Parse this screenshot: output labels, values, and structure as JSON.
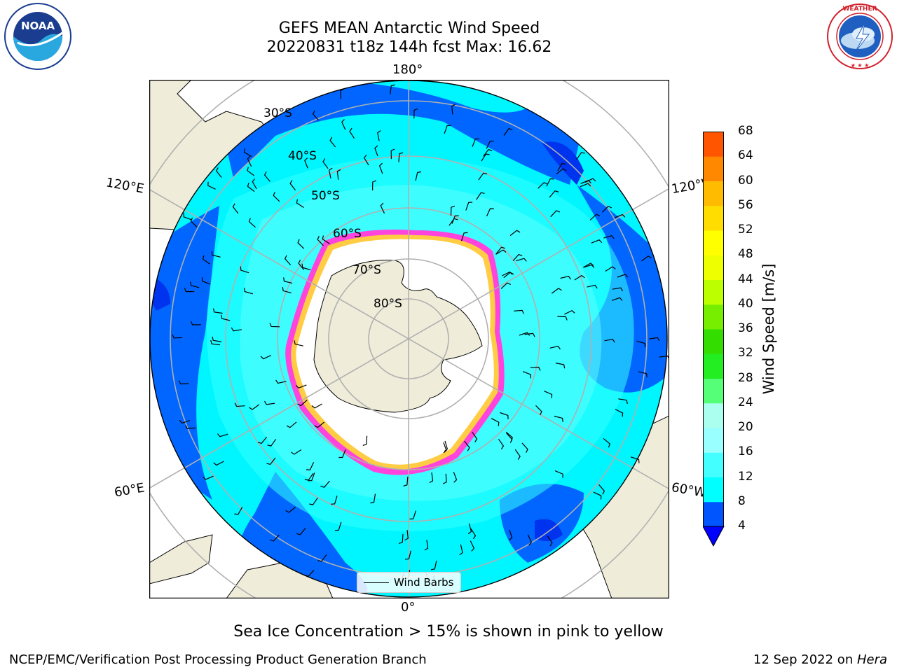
{
  "header": {
    "title_line1": "GEFS MEAN Antarctic Wind Speed",
    "title_line2": "20220831 t18z 144h fcst   Max: 16.62"
  },
  "logos": {
    "noaa_text": "NOAA",
    "noaa_ring_text": "NATIONAL OCEANIC AND ATMOSPHERIC ADMINISTRATION · U.S. DEPARTMENT OF COMMERCE",
    "nws_ring_text": "NATIONAL WEATHER SERVICE"
  },
  "map": {
    "longitude_labels": {
      "top": "180°",
      "left_upper": "120°E",
      "right_upper": "120°W",
      "left_lower": "60°E",
      "right_lower": "60°W",
      "bottom": "0°"
    },
    "latitude_labels": [
      "30°S",
      "40°S",
      "50°S",
      "60°S",
      "70°S",
      "80°S"
    ],
    "legend_label": "Wind Barbs"
  },
  "colorbar": {
    "label": "Wind Speed [m/s]",
    "ticks": [
      "4",
      "8",
      "12",
      "16",
      "20",
      "24",
      "28",
      "32",
      "36",
      "40",
      "44",
      "48",
      "52",
      "56",
      "60",
      "64",
      "68"
    ],
    "colors": [
      "#0055ff",
      "#00ffff",
      "#44ffff",
      "#99ffff",
      "#aaffee",
      "#55ff77",
      "#22ee22",
      "#33dd00",
      "#77ee00",
      "#bbff00",
      "#eeff00",
      "#ffff00",
      "#ffdd00",
      "#ffbb00",
      "#ff8800",
      "#ff5500",
      "#ff2200",
      "#ff0000"
    ],
    "under_color": "#0000ff"
  },
  "note": "Sea Ice Concentration > 15% is shown in pink to yellow",
  "footer": {
    "left": "NCEP/EMC/Verification Post Processing Product Generation Branch",
    "date": "12 Sep 2022 on ",
    "machine": "Hera"
  }
}
